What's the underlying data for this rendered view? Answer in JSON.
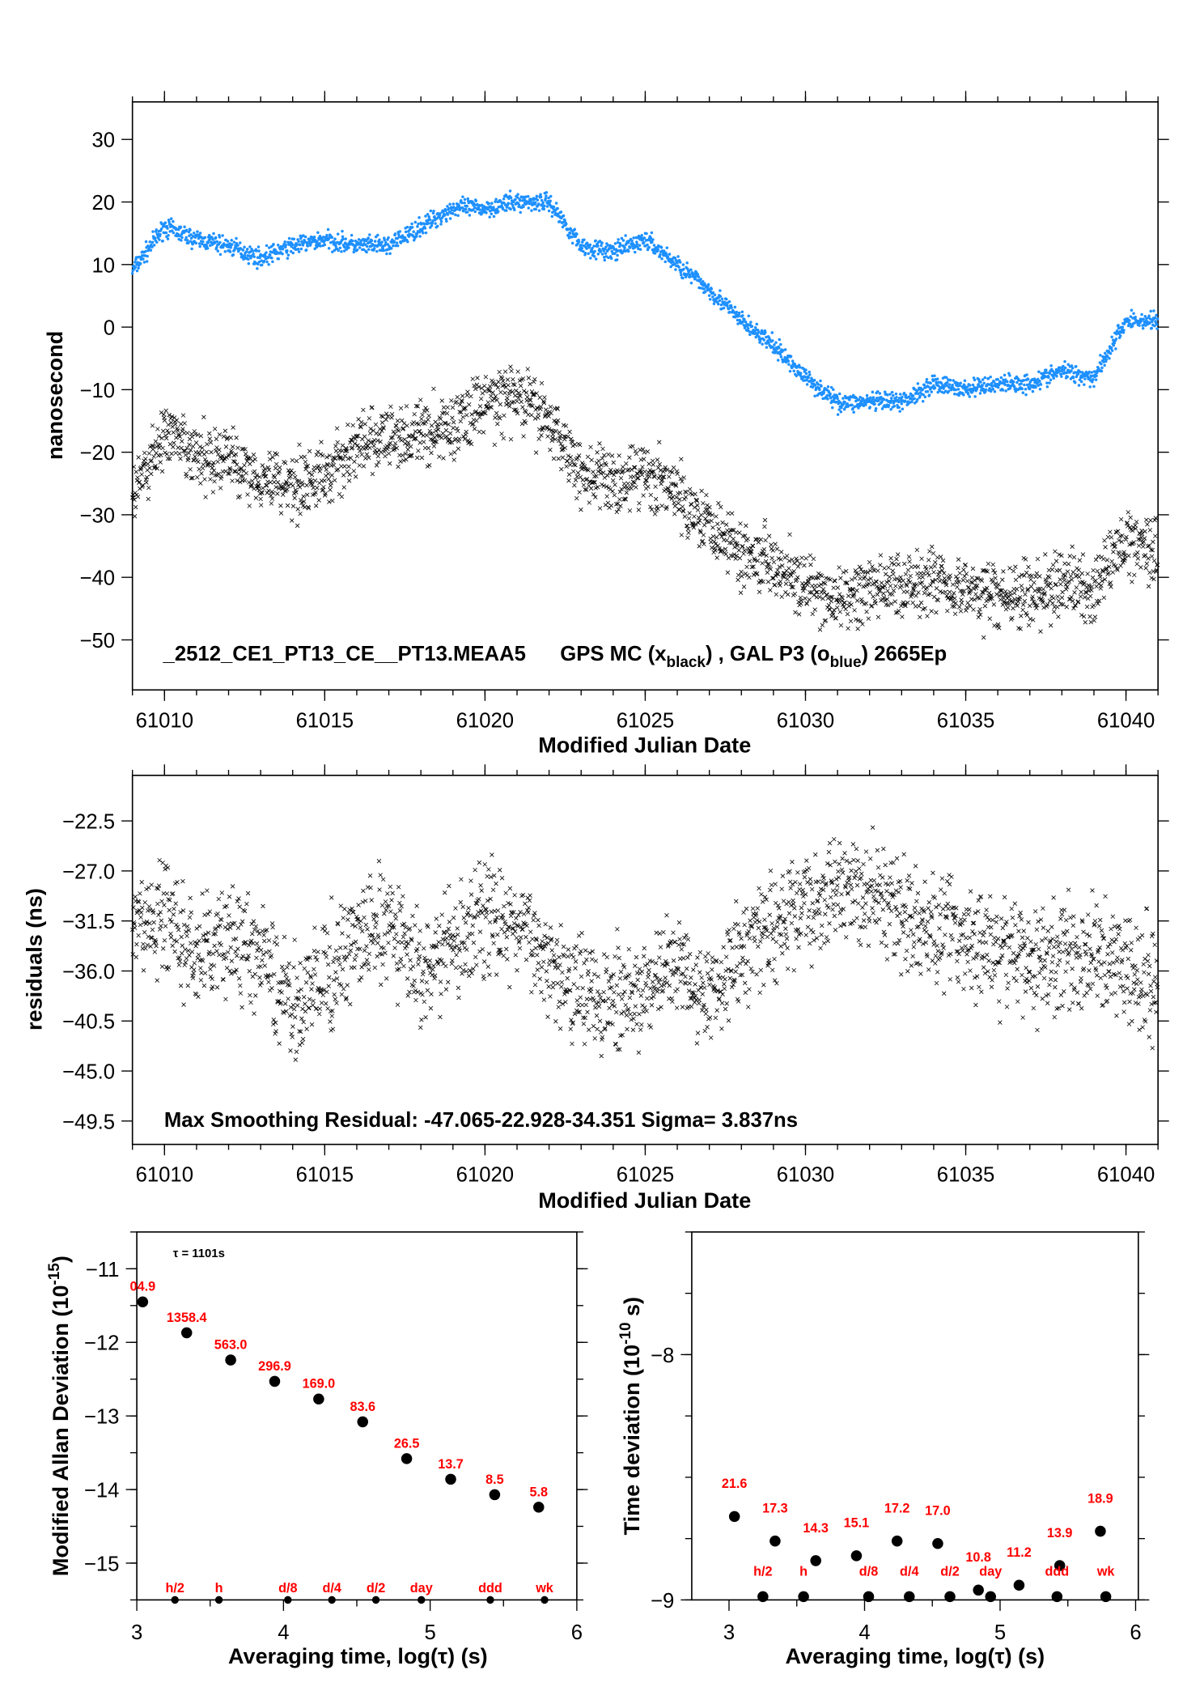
{
  "chart_data": [
    {
      "type": "scatter",
      "xlabel": "Modified Julian Date",
      "ylabel": "nanosecond",
      "xlim": [
        61009.0,
        61041.0
      ],
      "ylim": [
        -58,
        36
      ],
      "xticks": [
        61010,
        61015,
        61020,
        61025,
        61030,
        61035,
        61040
      ],
      "yticks": [
        30,
        20,
        10,
        0,
        -10,
        -20,
        -30,
        -40,
        -50
      ],
      "annotation": {
        "id": "_2512_CE1_PT13_CE__PT13.MEAA5",
        "gps": "GPS MC (x",
        "gps_sub": "black",
        "sep": ") ,  GAL P3 (o",
        "gal_sub": "blue",
        "tail": ")  2665Ep"
      },
      "series": [
        {
          "name": "GAL P3",
          "marker": "o",
          "color": "#1e90ff",
          "x": [
            61009,
            61010,
            61011,
            61012,
            61013,
            61014,
            61015,
            61016,
            61017,
            61018,
            61019,
            61020,
            61021,
            61022,
            61023,
            61024,
            61025,
            61026,
            61027,
            61028,
            61029,
            61030,
            61031,
            61032,
            61033,
            61034,
            61035,
            61036,
            61037,
            61038,
            61039,
            61040,
            61041
          ],
          "y": [
            9,
            16,
            14,
            13,
            11,
            13,
            14,
            13,
            13,
            16,
            19,
            19,
            20,
            20,
            13,
            12,
            14,
            10,
            6,
            1,
            -3,
            -8,
            -12,
            -12,
            -12,
            -9,
            -10,
            -9,
            -9,
            -7,
            -8,
            1,
            1
          ]
        },
        {
          "name": "GPS MC",
          "marker": "x",
          "color": "#000000",
          "x": [
            61009,
            61010,
            61011,
            61012,
            61013,
            61014,
            61015,
            61016,
            61017,
            61018,
            61019,
            61020,
            61021,
            61022,
            61023,
            61024,
            61025,
            61026,
            61027,
            61028,
            61029,
            61030,
            61031,
            61032,
            61033,
            61034,
            61035,
            61036,
            61037,
            61038,
            61039,
            61040,
            61041
          ],
          "y": [
            -27,
            -17,
            -21,
            -21,
            -24,
            -25,
            -24,
            -19,
            -18,
            -17,
            -16,
            -12,
            -11,
            -15,
            -23,
            -25,
            -23,
            -27,
            -31,
            -36,
            -37,
            -42,
            -44,
            -42,
            -41,
            -40,
            -42,
            -43,
            -43,
            -41,
            -42,
            -34,
            -35
          ]
        }
      ]
    },
    {
      "type": "scatter",
      "xlabel": "Modified Julian Date",
      "ylabel": "residuals (ns)",
      "xlim": [
        61009.0,
        61041.0
      ],
      "ylim": [
        -51.6,
        -18.4
      ],
      "xticks": [
        61010,
        61015,
        61020,
        61025,
        61030,
        61035,
        61040
      ],
      "yticks": [
        -22.5,
        -27.0,
        -31.5,
        -36.0,
        -40.5,
        -45.0,
        -49.5
      ],
      "ytick_labels": [
        "−22.5",
        "−27.0",
        "−31.5",
        "−36.0",
        "−40.5",
        "−45.0",
        "−49.5"
      ],
      "annotation": "Max Smoothing Residual: -47.065-22.928-34.351  Sigma= 3.837ns",
      "series": [
        {
          "marker": "x",
          "color": "#000000",
          "x": [
            61009,
            61010,
            61011,
            61012,
            61013,
            61014,
            61015,
            61016,
            61017,
            61018,
            61019,
            61020,
            61021,
            61022,
            61023,
            61024,
            61025,
            61026,
            61027,
            61028,
            61029,
            61030,
            61031,
            61032,
            61033,
            61034,
            61035,
            61036,
            61037,
            61038,
            61039,
            61040,
            61041
          ],
          "y": [
            -32,
            -31,
            -35,
            -33,
            -35,
            -39,
            -37,
            -33,
            -32,
            -36,
            -34,
            -31,
            -32,
            -35,
            -37,
            -39,
            -38,
            -35,
            -38,
            -34,
            -32,
            -30,
            -29,
            -29,
            -31,
            -32,
            -33,
            -34,
            -35,
            -35,
            -34,
            -35,
            -37
          ]
        }
      ]
    },
    {
      "type": "scatter",
      "xlabel": "Averaging time, log(τ) (s)",
      "ylabel": "Modified Allan Deviation (10",
      "ylabel_sup": "-15",
      "ylabel_tail": ")",
      "note": "τ = 1101s",
      "xlim": [
        3,
        6
      ],
      "ylim": [
        -15.5,
        -10.5
      ],
      "xticks": [
        3,
        4,
        5,
        6
      ],
      "yticks": [
        -11,
        -12,
        -13,
        -14,
        -15
      ],
      "x": [
        3.04,
        3.34,
        3.64,
        3.94,
        4.24,
        4.54,
        4.84,
        5.14,
        5.44,
        5.74
      ],
      "y": [
        -11.45,
        -11.87,
        -12.24,
        -12.53,
        -12.77,
        -13.08,
        -13.58,
        -13.86,
        -14.07,
        -14.24
      ],
      "point_labels": [
        "04.9",
        "1358.4",
        "563.0",
        "296.9",
        "169.0",
        "83.6",
        "26.5",
        "13.7",
        "8.5",
        "5.8"
      ],
      "markers": [
        {
          "label": "h/2",
          "x": 3.26
        },
        {
          "label": "h",
          "x": 3.56
        },
        {
          "label": "d/8",
          "x": 4.03
        },
        {
          "label": "d/4",
          "x": 4.33
        },
        {
          "label": "d/2",
          "x": 4.63
        },
        {
          "label": "day",
          "x": 4.94
        },
        {
          "label": "ddd",
          "x": 5.41
        },
        {
          "label": "wk",
          "x": 5.78
        }
      ]
    },
    {
      "type": "scatter",
      "xlabel": "Averaging time, log(τ) (s)",
      "ylabel": "Time deviation (10",
      "ylabel_sup": "-10",
      "ylabel_tail": " s)",
      "xlim": [
        2.725,
        6.02
      ],
      "ylim": [
        -9,
        -7.5
      ],
      "xticks": [
        3,
        4,
        5,
        6
      ],
      "yticks": [
        -8,
        -9
      ],
      "x": [
        3.04,
        3.34,
        3.64,
        3.94,
        4.24,
        4.54,
        4.84,
        5.14,
        5.44,
        5.74
      ],
      "y": [
        -8.66,
        -8.76,
        -8.84,
        -8.82,
        -8.76,
        -8.77,
        -8.96,
        -8.94,
        -8.86,
        -8.72
      ],
      "point_labels": [
        "21.6",
        "17.3",
        "14.3",
        "15.1",
        "17.2",
        "17.0",
        "10.8",
        "11.2",
        "13.9",
        "18.9"
      ],
      "markers": [
        {
          "label": "h/2",
          "x": 3.25
        },
        {
          "label": "h",
          "x": 3.55
        },
        {
          "label": "d/8",
          "x": 4.03
        },
        {
          "label": "d/4",
          "x": 4.33
        },
        {
          "label": "d/2",
          "x": 4.63
        },
        {
          "label": "day",
          "x": 4.93
        },
        {
          "label": "ddd",
          "x": 5.42
        },
        {
          "label": "wk",
          "x": 5.78
        }
      ]
    }
  ],
  "colors": {
    "blue_series": "#1e90ff",
    "black_series": "#000000",
    "labels": "#ff0000"
  }
}
